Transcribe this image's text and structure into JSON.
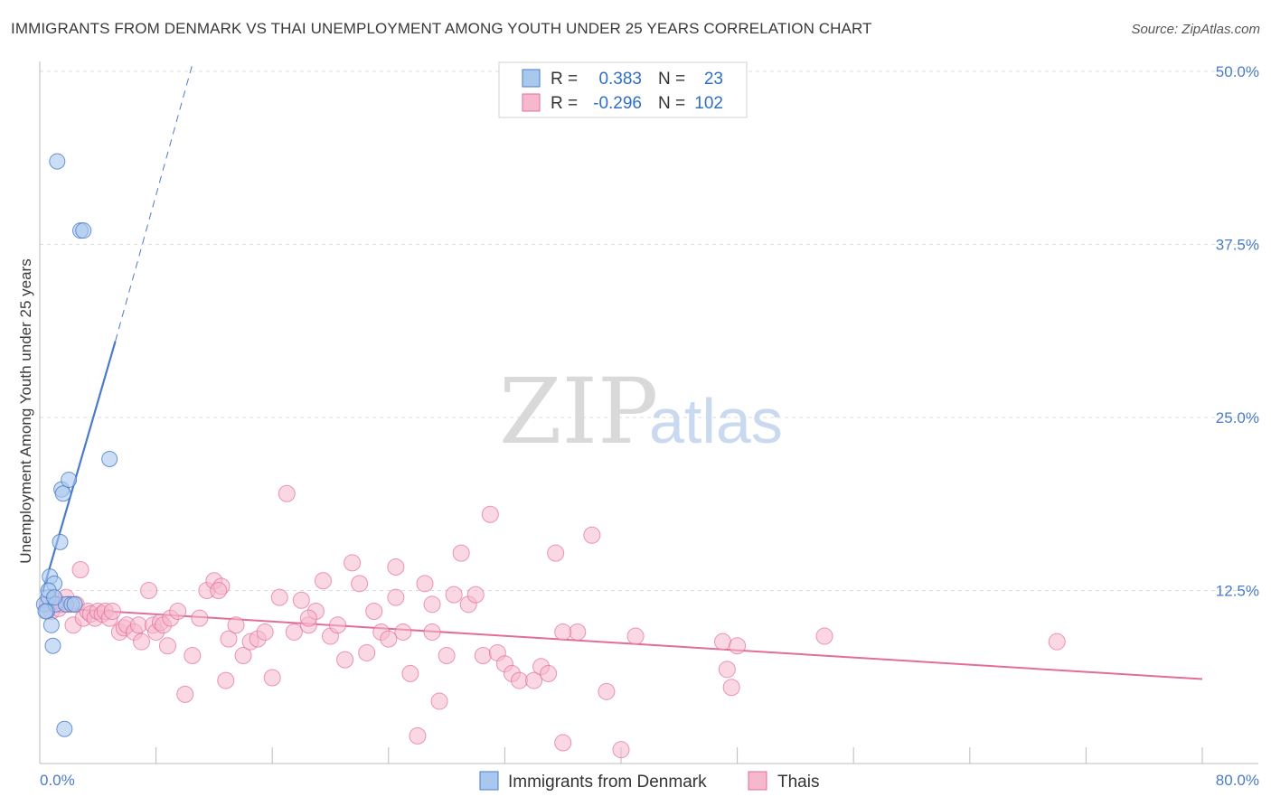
{
  "title": "IMMIGRANTS FROM DENMARK VS THAI UNEMPLOYMENT AMONG YOUTH UNDER 25 YEARS CORRELATION CHART",
  "source": "Source: ZipAtlas.com",
  "watermark": {
    "zip": "ZIP",
    "atlas": "atlas"
  },
  "colors": {
    "blue": "#4a7bc8",
    "blue_fill": "#a9c8ee",
    "pink": "#e36c9a",
    "pink_fill": "#f5b8cc"
  },
  "legend": {
    "rows": [
      {
        "r_label": "R =",
        "r_value": "0.383",
        "n_label": "N =",
        "n_value": "23"
      },
      {
        "r_label": "R =",
        "r_value": "-0.296",
        "n_label": "N =",
        "n_value": "102"
      }
    ]
  },
  "chart_data": {
    "type": "scatter",
    "title": "IMMIGRANTS FROM DENMARK VS THAI UNEMPLOYMENT AMONG YOUTH UNDER 25 YEARS CORRELATION CHART",
    "xlabel": "",
    "ylabel": "Unemployment Among Youth under 25 years",
    "xlim": [
      0,
      80
    ],
    "ylim": [
      0,
      50
    ],
    "x_tick_labels": [
      "0.0%",
      "80.0%"
    ],
    "y_ticks": [
      12.5,
      25.0,
      37.5,
      50.0
    ],
    "y_tick_labels": [
      "12.5%",
      "25.0%",
      "37.5%",
      "50.0%"
    ],
    "grid": true,
    "legend_position": "top-center",
    "series": [
      {
        "name": "Immigrants from Denmark",
        "x": [
          0.3,
          0.5,
          0.6,
          0.7,
          0.8,
          0.9,
          1.0,
          1.1,
          1.2,
          1.4,
          1.5,
          1.6,
          1.7,
          1.8,
          2.0,
          2.2,
          2.4,
          2.8,
          3.0,
          4.8,
          0.4,
          0.6,
          1.0
        ],
        "y": [
          11.5,
          11.0,
          12.0,
          13.5,
          10.0,
          8.5,
          13.0,
          11.5,
          43.5,
          16.0,
          19.8,
          19.5,
          2.5,
          11.5,
          20.5,
          11.5,
          11.5,
          38.5,
          38.5,
          22.0,
          11.0,
          12.5,
          12.0
        ],
        "trend": {
          "x": [
            0.2,
            5.2
          ],
          "y": [
            12.4,
            30.5
          ],
          "dashed_extension": {
            "x": [
              5.2,
              10.5
            ],
            "y": [
              30.5,
              50.5
            ]
          }
        }
      },
      {
        "name": "Thais",
        "x": [
          0.5,
          0.8,
          1.0,
          1.3,
          1.5,
          1.8,
          2.0,
          2.3,
          2.5,
          2.8,
          3.0,
          3.3,
          3.5,
          3.8,
          4.0,
          4.3,
          4.5,
          4.8,
          5.0,
          5.5,
          5.8,
          6.0,
          6.5,
          6.8,
          7.0,
          7.5,
          7.8,
          8.0,
          8.3,
          8.5,
          9.0,
          9.5,
          10.0,
          10.5,
          11.0,
          11.5,
          12.0,
          12.5,
          13.0,
          13.5,
          14.0,
          14.5,
          15.0,
          15.5,
          16.0,
          16.5,
          17.0,
          17.5,
          18.0,
          18.5,
          19.0,
          19.5,
          20.0,
          20.5,
          21.0,
          21.5,
          22.0,
          22.5,
          23.0,
          23.5,
          24.0,
          24.5,
          25.0,
          25.5,
          26.0,
          26.5,
          27.0,
          27.5,
          28.0,
          28.5,
          29.0,
          29.5,
          30.0,
          30.5,
          31.0,
          31.5,
          32.0,
          32.5,
          33.0,
          34.0,
          34.5,
          35.0,
          35.5,
          36.0,
          37.0,
          38.0,
          39.0,
          40.0,
          41.0,
          47.0,
          47.3,
          47.6,
          48.0,
          54.0,
          70.0,
          8.8,
          12.3,
          18.5,
          24.5,
          27.0,
          36.0,
          12.8
        ],
        "y": [
          11.5,
          11.0,
          11.8,
          11.2,
          11.5,
          12.0,
          11.5,
          10.0,
          11.5,
          14.0,
          10.5,
          11.0,
          10.8,
          10.5,
          11.0,
          10.8,
          11.0,
          10.5,
          11.0,
          9.5,
          9.8,
          10.0,
          9.5,
          10.0,
          8.8,
          12.5,
          10.0,
          9.5,
          10.2,
          10.0,
          10.5,
          11.0,
          5.0,
          7.8,
          10.5,
          12.5,
          13.2,
          12.8,
          9.0,
          10.0,
          7.8,
          8.8,
          9.0,
          9.5,
          6.2,
          12.0,
          19.5,
          9.5,
          11.8,
          10.0,
          11.0,
          13.2,
          9.2,
          10.0,
          7.5,
          14.5,
          13.0,
          8.0,
          11.0,
          9.5,
          9.0,
          14.2,
          9.5,
          6.5,
          2.0,
          13.0,
          9.5,
          4.5,
          7.8,
          12.2,
          15.2,
          11.5,
          12.2,
          7.8,
          18.0,
          8.0,
          7.2,
          6.5,
          6.0,
          6.0,
          7.0,
          6.5,
          15.2,
          1.5,
          9.5,
          16.5,
          5.2,
          1.0,
          9.2,
          8.8,
          6.8,
          5.5,
          8.5,
          9.2,
          8.8,
          8.5,
          12.5,
          10.5,
          12.0,
          11.5,
          9.5,
          6.0
        ],
        "trend": {
          "x": [
            0,
            80
          ],
          "y": [
            11.3,
            6.1
          ]
        }
      }
    ]
  },
  "bottom_legend": [
    "Immigrants from Denmark",
    "Thais"
  ]
}
